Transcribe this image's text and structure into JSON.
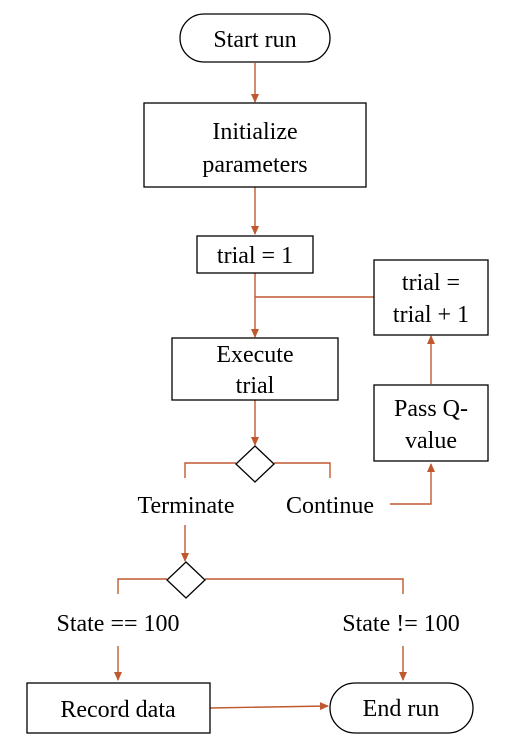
{
  "colors": {
    "connector": "#c0582f",
    "stroke": "#000000",
    "background": "#ffffff"
  },
  "nodes": {
    "start_run": "Start run",
    "initialize_line1": "Initialize",
    "initialize_line2": "parameters",
    "trial_init": "trial = 1",
    "execute_line1": "Execute",
    "execute_line2": "trial",
    "increment_line1": "trial =",
    "increment_line2": "trial + 1",
    "pass_line1": "Pass Q-",
    "pass_line2": "value",
    "record_data": "Record data",
    "end_run": "End run"
  },
  "branches": {
    "terminate": "Terminate",
    "continue": "Continue",
    "state_eq": "State == 100",
    "state_neq": "State != 100"
  }
}
